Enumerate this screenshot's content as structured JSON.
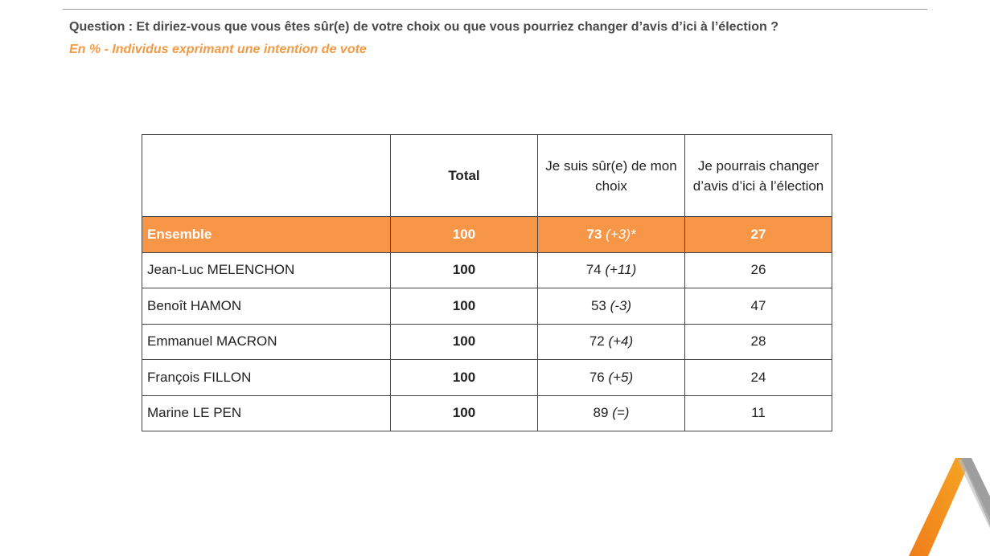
{
  "header": {
    "question": "Question : Et diriez-vous que vous êtes sûr(e) de votre choix ou que vous pourriez changer d’avis d’ici à l’élection ?",
    "subtitle": "En % - Individus exprimant une intention de vote"
  },
  "table": {
    "columns": [
      "",
      "Total",
      "Je suis sûr(e) de mon choix",
      "Je pourrais changer d’avis d’ici à l’élection"
    ],
    "rows": [
      {
        "name": "Ensemble",
        "total": "100",
        "sure": "73",
        "sure_delta": "(+3)*",
        "change": "27"
      },
      {
        "name": "Jean-Luc MELENCHON",
        "total": "100",
        "sure": "74",
        "sure_delta": "(+11)",
        "change": "26"
      },
      {
        "name": "Benoît HAMON",
        "total": "100",
        "sure": "53",
        "sure_delta": "(-3)",
        "change": "47"
      },
      {
        "name": "Emmanuel MACRON",
        "total": "100",
        "sure": "72",
        "sure_delta": "(+4)",
        "change": "28"
      },
      {
        "name": "François FILLON",
        "total": "100",
        "sure": "76",
        "sure_delta": "(+5)",
        "change": "24"
      },
      {
        "name": "Marine LE PEN",
        "total": "100",
        "sure": "89",
        "sure_delta": "(=)",
        "change": "11"
      }
    ]
  },
  "colors": {
    "accent": "#f79646",
    "subtitle": "#f39a45",
    "logo_orange": "#f07d1a",
    "logo_gray": "#9e9e9e"
  },
  "logo": {
    "icon": "brand-logo-icon"
  }
}
